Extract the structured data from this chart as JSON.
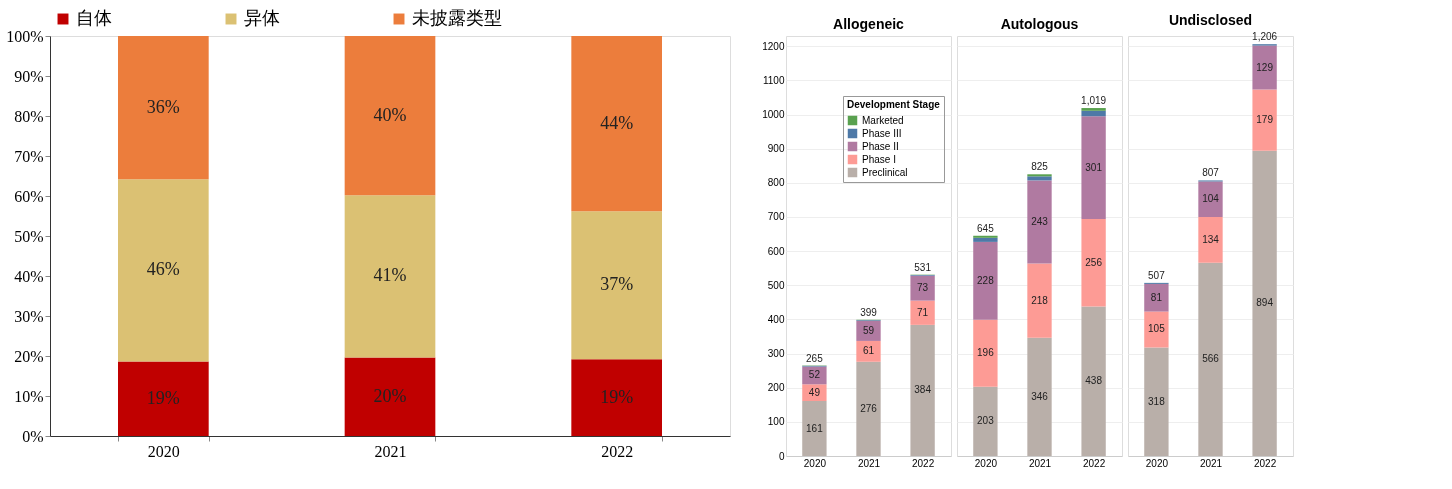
{
  "chart_data": [
    {
      "type": "bar",
      "stacked": true,
      "categories": [
        "2020",
        "2021",
        "2022"
      ],
      "ylim": [
        0,
        100
      ],
      "yticks": [
        {
          "value": 0,
          "label": "0%"
        },
        {
          "value": 10,
          "label": "10%"
        },
        {
          "value": 20,
          "label": "20%"
        },
        {
          "value": 30,
          "label": "30%"
        },
        {
          "value": 40,
          "label": "40%"
        },
        {
          "value": 50,
          "label": "50%"
        },
        {
          "value": 60,
          "label": "60%"
        },
        {
          "value": 70,
          "label": "70%"
        },
        {
          "value": 80,
          "label": "80%"
        },
        {
          "value": 90,
          "label": "90%"
        },
        {
          "value": 100,
          "label": "100%"
        }
      ],
      "grid": false,
      "legend": "top",
      "series": [
        {
          "name": "自体",
          "color": "#c00000",
          "values": [
            18.6,
            19.6,
            19.2
          ],
          "value_labels": [
            "19%",
            "20%",
            "19%"
          ]
        },
        {
          "name": "异体",
          "color": "#dbc173",
          "values": [
            45.6,
            40.6,
            37.0
          ],
          "value_labels": [
            "46%",
            "41%",
            "37%"
          ]
        },
        {
          "name": "未披露类型",
          "color": "#ec7d3c",
          "values": [
            35.8,
            39.8,
            43.8
          ],
          "value_labels": [
            "36%",
            "40%",
            "44%"
          ]
        }
      ]
    },
    {
      "type": "bar",
      "stacked": true,
      "title": "Allogeneic",
      "categories": [
        "2020",
        "2021",
        "2022"
      ],
      "ylim": [
        0,
        1230
      ],
      "yticks": [
        0,
        100,
        200,
        300,
        400,
        500,
        600,
        700,
        800,
        900,
        1000,
        1100,
        1200
      ],
      "grid": "y",
      "legend": "top right",
      "legend_title": "Development Stage",
      "totals": [
        "265",
        "399",
        "531"
      ],
      "series": [
        {
          "name": "Preclinical",
          "color": "#b9afa9",
          "values": [
            161,
            276,
            384
          ],
          "value_labels": [
            "161",
            "276",
            "384"
          ]
        },
        {
          "name": "Phase I",
          "color": "#fd9b95",
          "values": [
            49,
            61,
            71
          ],
          "value_labels": [
            "49",
            "61",
            "71"
          ]
        },
        {
          "name": "Phase II",
          "color": "#b07aa1",
          "values": [
            52,
            59,
            73
          ],
          "value_labels": [
            "52",
            "59",
            "73"
          ]
        },
        {
          "name": "Phase III",
          "color": "#4e79a7",
          "values": [
            2,
            2,
            2
          ],
          "value_labels": [
            null,
            null,
            null
          ]
        },
        {
          "name": "Marketed",
          "color": "#59a14f",
          "values": [
            1,
            1,
            1
          ],
          "value_labels": [
            null,
            null,
            null
          ]
        }
      ]
    },
    {
      "type": "bar",
      "stacked": true,
      "title": "Autologous",
      "categories": [
        "2020",
        "2021",
        "2022"
      ],
      "ylim": [
        0,
        1230
      ],
      "yticks": [
        0,
        100,
        200,
        300,
        400,
        500,
        600,
        700,
        800,
        900,
        1000,
        1100,
        1200
      ],
      "grid": "y",
      "legend": false,
      "tick_labels": "x",
      "totals": [
        "645",
        "825",
        "1,019"
      ],
      "series": [
        {
          "color": "#b9afa9",
          "values": [
            203,
            346,
            438
          ],
          "value_labels": [
            "203",
            "346",
            "438"
          ]
        },
        {
          "color": "#fd9b95",
          "values": [
            196,
            218,
            256
          ],
          "value_labels": [
            "196",
            "218",
            "256"
          ]
        },
        {
          "color": "#b07aa1",
          "values": [
            228,
            243,
            301
          ],
          "value_labels": [
            "228",
            "243",
            "301"
          ]
        },
        {
          "color": "#4e79a7",
          "values": [
            12,
            12,
            16
          ],
          "value_labels": [
            null,
            null,
            null
          ]
        },
        {
          "color": "#59a14f",
          "values": [
            6,
            6,
            8
          ],
          "value_labels": [
            null,
            null,
            null
          ]
        }
      ]
    },
    {
      "type": "bar",
      "stacked": true,
      "title": "Undisclosed",
      "categories": [
        "2020",
        "2021",
        "2022"
      ],
      "ylim": [
        0,
        1230
      ],
      "yticks": [
        0,
        100,
        200,
        300,
        400,
        500,
        600,
        700,
        800,
        900,
        1000,
        1100,
        1200
      ],
      "grid": "y",
      "legend": false,
      "tick_labels": "x",
      "totals": [
        "507",
        "807",
        "1,206"
      ],
      "series": [
        {
          "color": "#b9afa9",
          "values": [
            318,
            566,
            894
          ],
          "value_labels": [
            "318",
            "566",
            "894"
          ]
        },
        {
          "color": "#fd9b95",
          "values": [
            105,
            134,
            179
          ],
          "value_labels": [
            "105",
            "134",
            "179"
          ]
        },
        {
          "color": "#b07aa1",
          "values": [
            81,
            104,
            129
          ],
          "value_labels": [
            "81",
            "104",
            "129"
          ]
        },
        {
          "color": "#4e79a7",
          "values": [
            3,
            3,
            4
          ],
          "value_labels": [
            null,
            null,
            null
          ]
        },
        {
          "color": "#59a14f",
          "values": [
            0,
            0,
            0
          ],
          "value_labels": [
            null,
            null,
            null
          ]
        }
      ]
    }
  ]
}
